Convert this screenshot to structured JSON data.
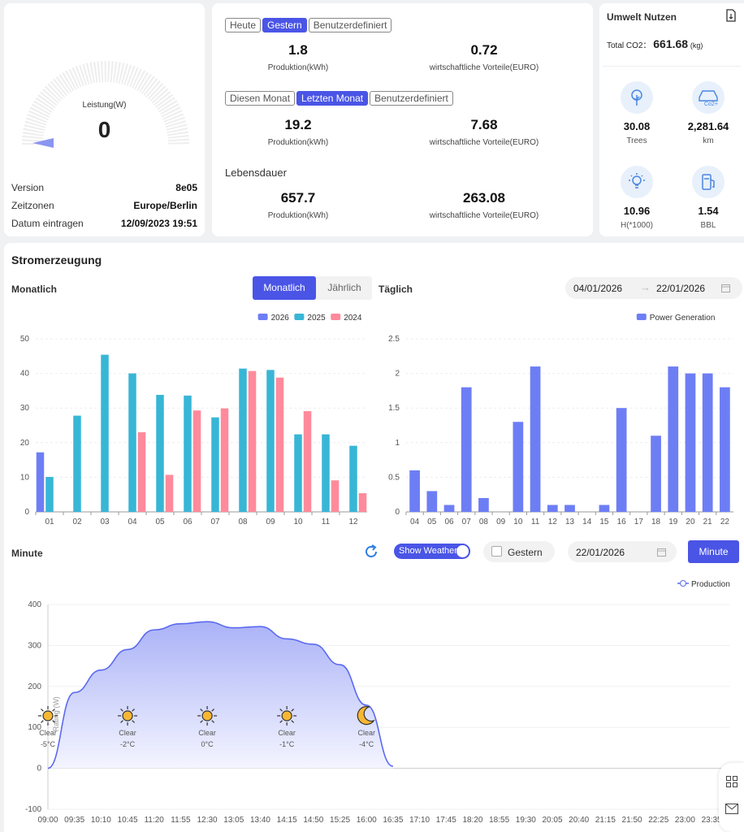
{
  "device": {
    "gauge_label": "Leistung(W)",
    "gauge_value": "0",
    "rows": [
      {
        "label": "Version",
        "value": "8e05"
      },
      {
        "label": "Zeitzonen",
        "value": "Europe/Berlin"
      },
      {
        "label": "Datum eintragen",
        "value": "12/09/2023 19:51"
      }
    ]
  },
  "stats": {
    "day_tabs": [
      "Heute",
      "Gestern",
      "Benutzerdefiniert"
    ],
    "day": {
      "production": "1.8",
      "production_label": "Produktion(kWh)",
      "benefit": "0.72",
      "benefit_label": "wirtschaftliche Vorteile(EURO)"
    },
    "month_tabs": [
      "Diesen Monat",
      "Letzten Monat",
      "Benutzerdefiniert"
    ],
    "month": {
      "production": "19.2",
      "production_label": "Produktion(kWh)",
      "benefit": "7.68",
      "benefit_label": "wirtschaftliche Vorteile(EURO)"
    },
    "lifetime_title": "Lebensdauer",
    "lifetime": {
      "production": "657.7",
      "production_label": "Produktion(kWh)",
      "benefit": "263.08",
      "benefit_label": "wirtschaftliche Vorteile(EURO)"
    }
  },
  "env": {
    "title": "Umwelt Nutzen",
    "co2_label": "Total CO2：",
    "co2_value": "661.68",
    "co2_unit": "(kg)",
    "co2_badge": "Co2+",
    "items": [
      {
        "value": "30.08",
        "label": "Trees",
        "icon": "tree-icon"
      },
      {
        "value": "2,281.64",
        "label": "km",
        "icon": "car-icon"
      },
      {
        "value": "10.96",
        "label": "H(*1000)",
        "icon": "bulb-icon"
      },
      {
        "value": "1.54",
        "label": "BBL",
        "icon": "fuel-icon"
      }
    ]
  },
  "power": {
    "title": "Stromerzeugung",
    "monthly_label": "Monatlich",
    "tab_monthly": "Monatlich",
    "tab_yearly": "Jährlich",
    "daily_label": "Täglich",
    "date_from": "04/01/2026",
    "date_to": "22/01/2026",
    "minute_label": "Minute",
    "show_weather": "Show Weather",
    "yesterday": "Gestern",
    "minute_date": "22/01/2026",
    "minute_button": "Minute"
  },
  "colors": {
    "accent": "#4a55e6",
    "s2026": "#6d7ef5",
    "s2025": "#38b6d6",
    "s2024": "#ff8a9b",
    "daily": "#6d7ef5",
    "line": "#5b6af0"
  },
  "chart_data": [
    {
      "type": "bar",
      "categories": [
        "01",
        "02",
        "03",
        "04",
        "05",
        "06",
        "07",
        "08",
        "09",
        "10",
        "11",
        "12"
      ],
      "ylim": [
        0,
        50
      ],
      "yticks": [
        0,
        10,
        20,
        30,
        40,
        50
      ],
      "legend_position": "top-right",
      "series": [
        {
          "name": "2026",
          "values": [
            17.2,
            null,
            null,
            null,
            null,
            null,
            null,
            null,
            null,
            null,
            null,
            null
          ]
        },
        {
          "name": "2025",
          "values": [
            10.1,
            27.8,
            45.4,
            40.0,
            33.8,
            33.6,
            27.3,
            41.4,
            41.0,
            22.4,
            22.4,
            19.1
          ]
        },
        {
          "name": "2024",
          "values": [
            null,
            null,
            null,
            23.0,
            10.7,
            29.3,
            29.9,
            40.7,
            38.8,
            29.1,
            9.1,
            5.4
          ]
        }
      ]
    },
    {
      "type": "bar",
      "categories": [
        "04",
        "05",
        "06",
        "07",
        "08",
        "09",
        "10",
        "11",
        "12",
        "13",
        "14",
        "15",
        "16",
        "17",
        "18",
        "19",
        "20",
        "21",
        "22"
      ],
      "ylim": [
        0,
        2.5
      ],
      "yticks": [
        0,
        0.5,
        1,
        1.5,
        2,
        2.5
      ],
      "legend_position": "top-right",
      "series": [
        {
          "name": "Power Generation",
          "values": [
            0.6,
            0.3,
            0.1,
            1.8,
            0.2,
            0,
            1.3,
            2.1,
            0.1,
            0.1,
            0,
            0.1,
            1.5,
            0,
            1.1,
            2.1,
            2.0,
            2.0,
            1.8
          ]
        }
      ]
    },
    {
      "type": "area",
      "ylabel": "Rating (W)",
      "ylim": [
        -100,
        400
      ],
      "yticks": [
        -100,
        0,
        100,
        200,
        300,
        400
      ],
      "legend_position": "top-right",
      "x": [
        "09:00",
        "09:35",
        "10:10",
        "10:45",
        "11:20",
        "11:55",
        "12:30",
        "13:05",
        "13:40",
        "14:15",
        "14:50",
        "15:25",
        "16:00",
        "16:35",
        "17:10",
        "17:45",
        "18:20",
        "18:55",
        "19:30",
        "20:05",
        "20:40",
        "21:15",
        "21:50",
        "22:25",
        "23:00",
        "23:35"
      ],
      "series": [
        {
          "name": "Production",
          "values": [
            0,
            185,
            240,
            290,
            338,
            353,
            358,
            343,
            346,
            316,
            303,
            253,
            154,
            5,
            null,
            null,
            null,
            null,
            null,
            null,
            null,
            null,
            null,
            null,
            null,
            null
          ]
        }
      ],
      "weather": [
        {
          "time": "09:00",
          "cond": "Clear",
          "temp": "-5°C",
          "icon": "sun-icon"
        },
        {
          "time": "10:45",
          "cond": "Clear",
          "temp": "-2°C",
          "icon": "sun-icon"
        },
        {
          "time": "12:30",
          "cond": "Clear",
          "temp": "0°C",
          "icon": "sun-icon"
        },
        {
          "time": "14:15",
          "cond": "Clear",
          "temp": "-1°C",
          "icon": "sun-icon"
        },
        {
          "time": "16:00",
          "cond": "Clear",
          "temp": "-4°C",
          "icon": "moon-icon"
        }
      ]
    }
  ]
}
